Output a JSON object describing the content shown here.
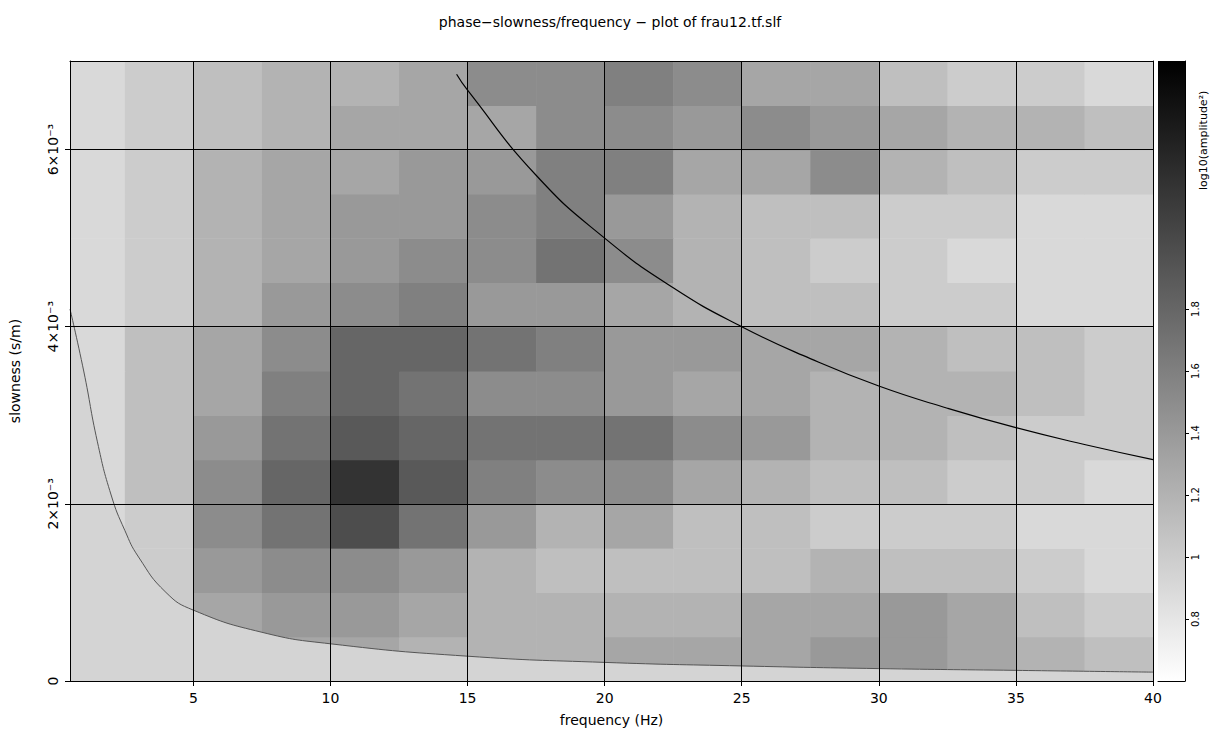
{
  "chart_data": {
    "type": "heatmap",
    "title": "phase−slowness/frequency − plot of frau12.tf.slf",
    "x_label": "frequency (Hz)",
    "y_label": "slowness (s/m)",
    "xlim": [
      0.5,
      40
    ],
    "xticks": [
      5,
      10,
      15,
      20,
      25,
      30,
      35,
      40
    ],
    "ylim": [
      0,
      0.007
    ],
    "yticks": [
      0,
      {
        "value": 0.002,
        "label": "2×10⁻³"
      },
      {
        "value": 0.004,
        "label": "4×10⁻³"
      },
      {
        "value": 0.006,
        "label": "6×10⁻³"
      }
    ],
    "grid": true,
    "colorbar_label": "log10(amplitude²)",
    "colorbar_lim": [
      0.6,
      2.6
    ],
    "colorbar_ticks": [
      0.8,
      1,
      1.2,
      1.4,
      1.6,
      1.8
    ],
    "cells": {
      "x_edges": [
        0.5,
        2.5,
        5,
        7.5,
        10,
        12.5,
        15,
        17.5,
        20,
        22.5,
        25,
        27.5,
        30,
        32.5,
        35,
        37.5,
        40
      ],
      "y_edges": [
        0,
        0.0005,
        0.001,
        0.0015,
        0.002,
        0.0025,
        0.003,
        0.0035,
        0.004,
        0.0045,
        0.005,
        0.0055,
        0.006,
        0.0065,
        0.007
      ],
      "values": [
        [
          0.9,
          1.0,
          1.2,
          1.3,
          1.3,
          1.2,
          1.2,
          1.2,
          1.3,
          1.3,
          1.3,
          1.4,
          1.4,
          1.3,
          1.2,
          1.1
        ],
        [
          0.9,
          1.0,
          1.3,
          1.4,
          1.4,
          1.3,
          1.2,
          1.2,
          1.2,
          1.2,
          1.3,
          1.3,
          1.4,
          1.3,
          1.1,
          1.0
        ],
        [
          0.9,
          1.0,
          1.4,
          1.5,
          1.5,
          1.4,
          1.2,
          1.1,
          1.1,
          1.1,
          1.1,
          1.2,
          1.1,
          1.1,
          1.0,
          0.9
        ],
        [
          0.9,
          1.0,
          1.5,
          1.7,
          2.0,
          1.7,
          1.4,
          1.2,
          1.3,
          1.1,
          1.1,
          1.0,
          1.0,
          1.0,
          0.9,
          0.9
        ],
        [
          0.9,
          1.1,
          1.5,
          1.8,
          2.2,
          1.9,
          1.6,
          1.5,
          1.5,
          1.3,
          1.2,
          1.1,
          1.1,
          1.0,
          1.0,
          0.9
        ],
        [
          0.9,
          1.1,
          1.4,
          1.7,
          1.9,
          1.8,
          1.7,
          1.7,
          1.7,
          1.5,
          1.4,
          1.2,
          1.2,
          1.1,
          1.0,
          1.0
        ],
        [
          0.9,
          1.1,
          1.3,
          1.6,
          1.8,
          1.7,
          1.5,
          1.5,
          1.4,
          1.3,
          1.3,
          1.2,
          1.2,
          1.2,
          1.1,
          1.0
        ],
        [
          0.9,
          1.1,
          1.3,
          1.5,
          1.8,
          1.8,
          1.7,
          1.6,
          1.4,
          1.4,
          1.3,
          1.3,
          1.2,
          1.1,
          1.1,
          1.0
        ],
        [
          0.9,
          1.0,
          1.2,
          1.4,
          1.5,
          1.6,
          1.4,
          1.4,
          1.3,
          1.2,
          1.1,
          1.1,
          1.0,
          1.0,
          0.9,
          0.9
        ],
        [
          0.9,
          1.0,
          1.2,
          1.3,
          1.4,
          1.5,
          1.5,
          1.7,
          1.5,
          1.2,
          1.1,
          1.0,
          1.0,
          0.9,
          0.9,
          0.9
        ],
        [
          0.9,
          1.0,
          1.2,
          1.3,
          1.4,
          1.4,
          1.5,
          1.6,
          1.4,
          1.2,
          1.1,
          1.1,
          1.0,
          1.0,
          0.9,
          0.9
        ],
        [
          0.9,
          1.0,
          1.2,
          1.3,
          1.3,
          1.4,
          1.4,
          1.6,
          1.6,
          1.3,
          1.3,
          1.5,
          1.2,
          1.1,
          1.0,
          1.0
        ],
        [
          0.9,
          1.0,
          1.1,
          1.2,
          1.3,
          1.3,
          1.3,
          1.5,
          1.5,
          1.4,
          1.5,
          1.4,
          1.3,
          1.2,
          1.2,
          1.1
        ],
        [
          0.9,
          1.0,
          1.1,
          1.2,
          1.2,
          1.3,
          1.5,
          1.5,
          1.6,
          1.5,
          1.3,
          1.3,
          1.1,
          1.0,
          1.0,
          0.9
        ]
      ]
    },
    "curve": {
      "x": [
        14.6,
        15,
        17.5,
        20,
        22.5,
        25,
        27.5,
        30,
        32.5,
        35,
        37.5,
        40
      ],
      "y": [
        0.00685,
        0.00667,
        0.00571,
        0.005,
        0.00444,
        0.004,
        0.00364,
        0.00333,
        0.00308,
        0.00286,
        0.00267,
        0.0025
      ]
    },
    "excluded_region": {
      "x": [
        0.5,
        1,
        1.5,
        2,
        2.5,
        3,
        4,
        5,
        7.5,
        10,
        15,
        20,
        25,
        30,
        35,
        40
      ],
      "y": [
        0.0042,
        0.0035,
        0.0027,
        0.0021,
        0.0017,
        0.0014,
        0.001,
        0.0008,
        0.00055,
        0.00042,
        0.00028,
        0.00021,
        0.00017,
        0.00014,
        0.00012,
        0.0001
      ]
    }
  }
}
